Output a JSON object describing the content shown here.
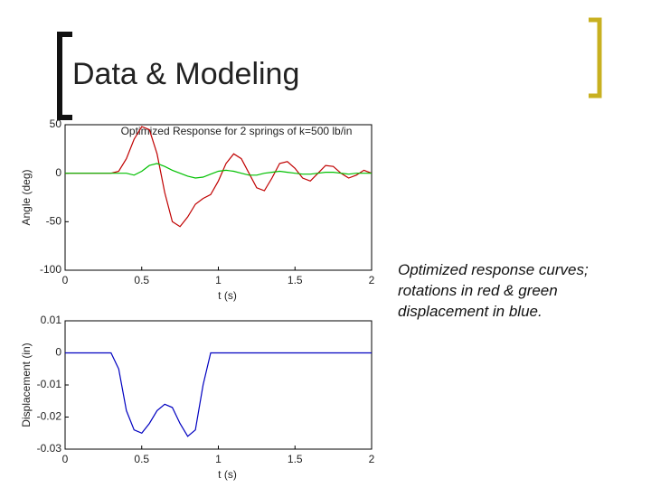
{
  "slide_title": "Data & Modeling",
  "caption": [
    "Optimized response curves;",
    "rotations in red & green",
    "displacement in blue."
  ],
  "chart_data": [
    {
      "type": "line",
      "title": "Optimized Response for 2 springs of k=500 lb/in",
      "x_label": "t (s)",
      "y_label": "Angle (deg)",
      "x": [
        0,
        0.05,
        0.1,
        0.15,
        0.2,
        0.25,
        0.3,
        0.35,
        0.4,
        0.45,
        0.5,
        0.55,
        0.6,
        0.65,
        0.7,
        0.75,
        0.8,
        0.85,
        0.9,
        0.95,
        1,
        1.05,
        1.1,
        1.15,
        1.2,
        1.25,
        1.3,
        1.35,
        1.4,
        1.45,
        1.5,
        1.55,
        1.6,
        1.65,
        1.7,
        1.75,
        1.8,
        1.85,
        1.9,
        1.95,
        2
      ],
      "series": [
        {
          "color": "#c00000",
          "values": [
            0,
            0,
            0,
            0,
            0,
            0,
            0,
            2,
            15,
            35,
            48,
            45,
            20,
            -20,
            -50,
            -55,
            -45,
            -32,
            -26,
            -22,
            -8,
            10,
            20,
            15,
            0,
            -15,
            -18,
            -5,
            10,
            12,
            5,
            -5,
            -8,
            0,
            8,
            7,
            0,
            -5,
            -2,
            3,
            0
          ]
        },
        {
          "color": "#00c000",
          "values": [
            0,
            0,
            0,
            0,
            0,
            0,
            0,
            0,
            0,
            -2,
            2,
            8,
            10,
            7,
            3,
            0,
            -3,
            -5,
            -4,
            -1,
            2,
            3,
            2,
            0,
            -2,
            -2,
            0,
            1,
            2,
            1,
            0,
            -1,
            -1,
            0,
            1,
            1,
            0,
            -1,
            0,
            0,
            0
          ]
        }
      ],
      "xlim": [
        0,
        2
      ],
      "xticks": [
        0,
        0.5,
        1,
        1.5,
        2
      ],
      "ylim": [
        -100,
        50
      ],
      "yticks": [
        50,
        0,
        -50,
        -100
      ]
    },
    {
      "type": "line",
      "x_label": "t (s)",
      "y_label": "Displacement (in)",
      "x": [
        0,
        0.05,
        0.1,
        0.15,
        0.2,
        0.25,
        0.3,
        0.35,
        0.4,
        0.45,
        0.5,
        0.55,
        0.6,
        0.65,
        0.7,
        0.75,
        0.8,
        0.85,
        0.9,
        0.95,
        1,
        1.05,
        1.1,
        1.15,
        1.2,
        1.25,
        1.3,
        1.35,
        1.4,
        1.45,
        1.5,
        1.55,
        1.6,
        1.65,
        1.7,
        1.75,
        1.8,
        1.85,
        1.9,
        1.95,
        2
      ],
      "series": [
        {
          "color": "#0000c0",
          "values": [
            0,
            0,
            0,
            0,
            0,
            0,
            0,
            -0.005,
            -0.018,
            -0.024,
            -0.025,
            -0.022,
            -0.018,
            -0.016,
            -0.017,
            -0.022,
            -0.026,
            -0.024,
            -0.01,
            0,
            0,
            0,
            0,
            0,
            0,
            0,
            0,
            0,
            0,
            0,
            0,
            0,
            0,
            0,
            0,
            0,
            0,
            0,
            0,
            0,
            0
          ]
        }
      ],
      "xlim": [
        0,
        2
      ],
      "xticks": [
        0,
        0.5,
        1,
        1.5,
        2
      ],
      "ylim": [
        -0.03,
        0.01
      ],
      "yticks": [
        0.01,
        0,
        -0.01,
        -0.02,
        -0.03
      ]
    }
  ]
}
